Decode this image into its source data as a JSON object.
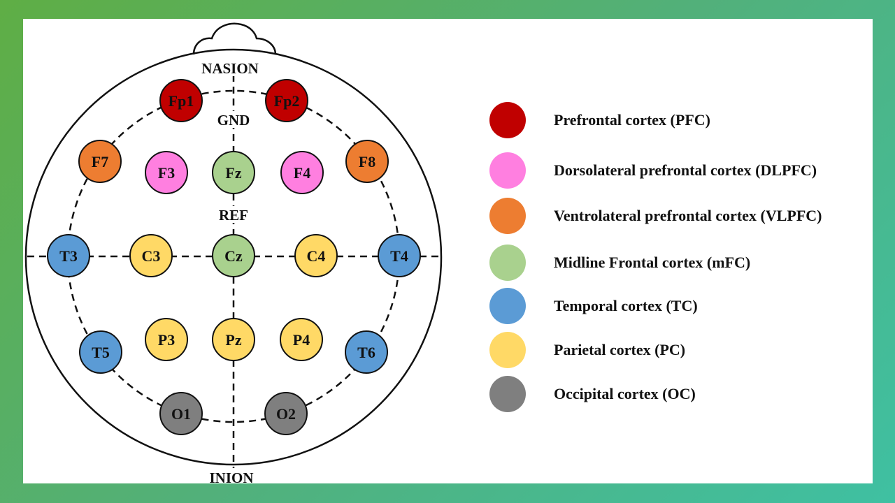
{
  "head": {
    "top_label": "NASION",
    "bottom_label": "INION",
    "ground_label": "GND",
    "reference_label": "REF"
  },
  "colors": {
    "PFC": "#c00000",
    "DLPFC": "#ff7fe0",
    "VLPFC": "#ed7d31",
    "mFC": "#a9d18e",
    "TC": "#5b9bd5",
    "PC": "#ffd966",
    "OC": "#7f7f7f"
  },
  "electrodes": [
    {
      "label": "Fp1",
      "region": "PFC"
    },
    {
      "label": "Fp2",
      "region": "PFC"
    },
    {
      "label": "F7",
      "region": "VLPFC"
    },
    {
      "label": "F3",
      "region": "DLPFC"
    },
    {
      "label": "Fz",
      "region": "mFC"
    },
    {
      "label": "F4",
      "region": "DLPFC"
    },
    {
      "label": "F8",
      "region": "VLPFC"
    },
    {
      "label": "T3",
      "region": "TC"
    },
    {
      "label": "C3",
      "region": "PC"
    },
    {
      "label": "Cz",
      "region": "mFC"
    },
    {
      "label": "C4",
      "region": "PC"
    },
    {
      "label": "T4",
      "region": "TC"
    },
    {
      "label": "T5",
      "region": "TC"
    },
    {
      "label": "P3",
      "region": "PC"
    },
    {
      "label": "Pz",
      "region": "PC"
    },
    {
      "label": "P4",
      "region": "PC"
    },
    {
      "label": "T6",
      "region": "TC"
    },
    {
      "label": "O1",
      "region": "OC"
    },
    {
      "label": "O2",
      "region": "OC"
    }
  ],
  "legend": [
    {
      "label": "Prefrontal cortex (PFC)",
      "region": "PFC"
    },
    {
      "label": "Dorsolateral prefrontal cortex (DLPFC)",
      "region": "DLPFC"
    },
    {
      "label": "Ventrolateral prefrontal cortex (VLPFC)",
      "region": "VLPFC"
    },
    {
      "label": "Midline Frontal cortex (mFC)",
      "region": "mFC"
    },
    {
      "label": "Temporal cortex (TC)",
      "region": "TC"
    },
    {
      "label": "Parietal cortex (PC)",
      "region": "PC"
    },
    {
      "label": "Occipital cortex (OC)",
      "region": "OC"
    }
  ]
}
